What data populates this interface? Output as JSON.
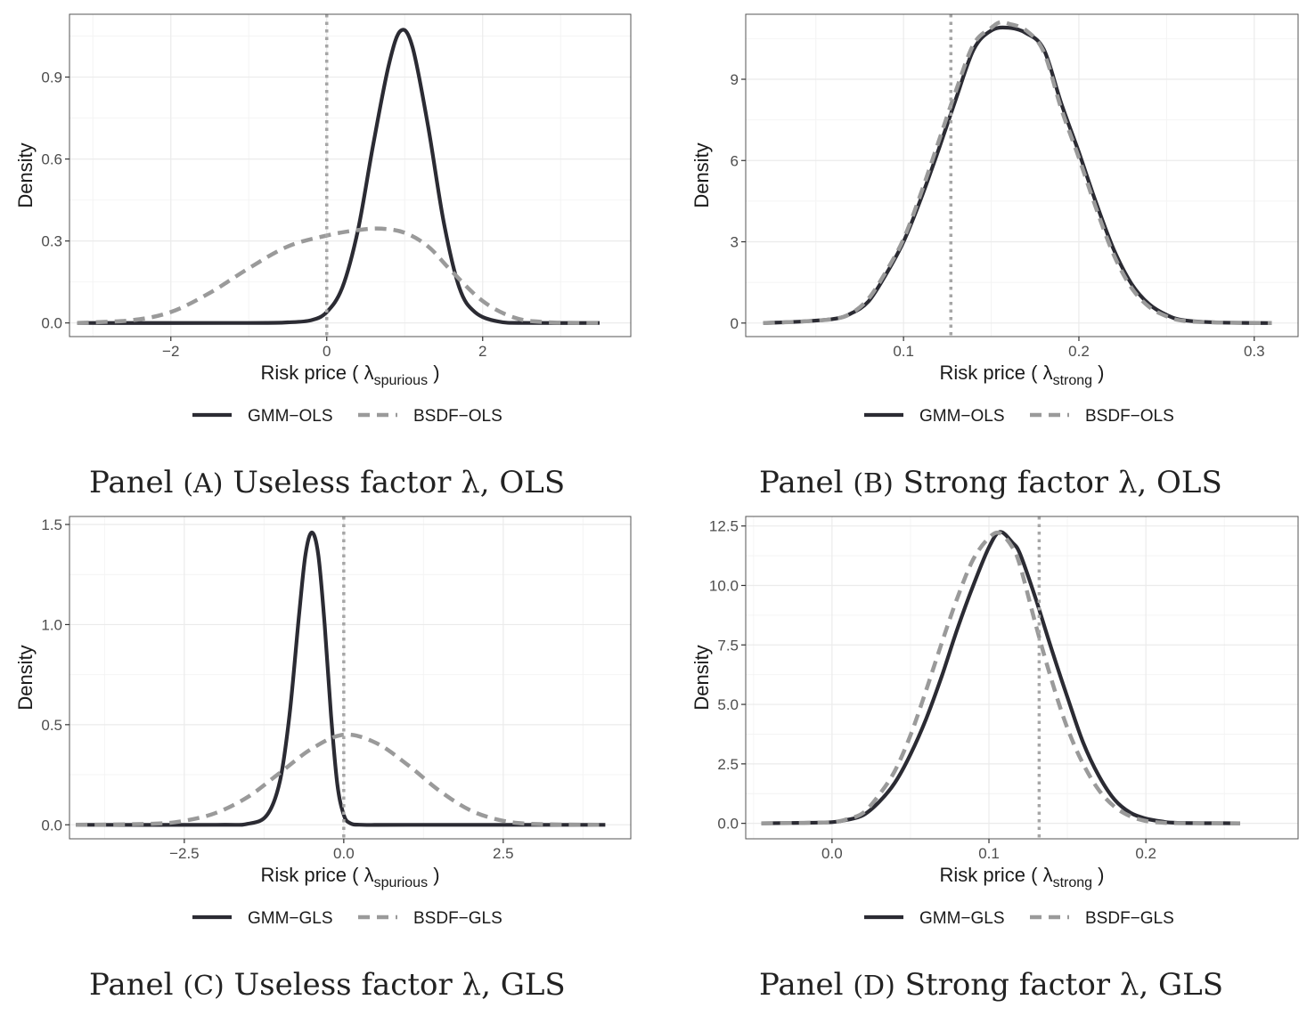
{
  "colors": {
    "solid": "#2b2b33",
    "dashed": "#9a9a9a",
    "vline": "#a6a6a6",
    "grid": "#ebebeb",
    "border": "#555555"
  },
  "panels": [
    {
      "id": "A",
      "caption": {
        "prefix": "Panel",
        "paren": "(A)",
        "text": "Useless factor λ, OLS"
      },
      "xlabel_main": "Risk price ( λ",
      "xlabel_sub": "spurious",
      "xlabel_end": " )",
      "ylabel": "Density",
      "legend": [
        "GMM−OLS",
        "BSDF−OLS"
      ],
      "xticks": [
        {
          "v": -2,
          "t": "−2"
        },
        {
          "v": 0,
          "t": "0"
        },
        {
          "v": 2,
          "t": "2"
        }
      ],
      "yticks": [
        {
          "v": 0,
          "t": "0.0"
        },
        {
          "v": 0.3,
          "t": "0.3"
        },
        {
          "v": 0.6,
          "t": "0.6"
        },
        {
          "v": 0.9,
          "t": "0.9"
        }
      ]
    },
    {
      "id": "B",
      "caption": {
        "prefix": "Panel",
        "paren": "(B)",
        "text": "Strong factor λ, OLS"
      },
      "xlabel_main": "Risk price ( λ",
      "xlabel_sub": "strong",
      "xlabel_end": " )",
      "ylabel": "Density",
      "legend": [
        "GMM−OLS",
        "BSDF−OLS"
      ],
      "xticks": [
        {
          "v": 0.1,
          "t": "0.1"
        },
        {
          "v": 0.2,
          "t": "0.2"
        },
        {
          "v": 0.3,
          "t": "0.3"
        }
      ],
      "yticks": [
        {
          "v": 0,
          "t": "0"
        },
        {
          "v": 3,
          "t": "3"
        },
        {
          "v": 6,
          "t": "6"
        },
        {
          "v": 9,
          "t": "9"
        }
      ]
    },
    {
      "id": "C",
      "caption": {
        "prefix": "Panel",
        "paren": "(C)",
        "text": "Useless factor λ, GLS"
      },
      "xlabel_main": "Risk price ( λ",
      "xlabel_sub": "spurious",
      "xlabel_end": " )",
      "ylabel": "Density",
      "legend": [
        "GMM−GLS",
        "BSDF−GLS"
      ],
      "xticks": [
        {
          "v": -2.5,
          "t": "−2.5"
        },
        {
          "v": 0,
          "t": "0.0"
        },
        {
          "v": 2.5,
          "t": "2.5"
        }
      ],
      "yticks": [
        {
          "v": 0,
          "t": "0.0"
        },
        {
          "v": 0.5,
          "t": "0.5"
        },
        {
          "v": 1.0,
          "t": "1.0"
        },
        {
          "v": 1.5,
          "t": "1.5"
        }
      ]
    },
    {
      "id": "D",
      "caption": {
        "prefix": "Panel",
        "paren": "(D)",
        "text": "Strong factor λ, GLS"
      },
      "xlabel_main": "Risk price ( λ",
      "xlabel_sub": "strong",
      "xlabel_end": " )",
      "ylabel": "Density",
      "legend": [
        "GMM−GLS",
        "BSDF−GLS"
      ],
      "xticks": [
        {
          "v": 0.0,
          "t": "0.0"
        },
        {
          "v": 0.1,
          "t": "0.1"
        },
        {
          "v": 0.2,
          "t": "0.2"
        }
      ],
      "yticks": [
        {
          "v": 0,
          "t": "0.0"
        },
        {
          "v": 2.5,
          "t": "2.5"
        },
        {
          "v": 5.0,
          "t": "5.0"
        },
        {
          "v": 7.5,
          "t": "7.5"
        },
        {
          "v": 10.0,
          "t": "10.0"
        },
        {
          "v": 12.5,
          "t": "12.5"
        }
      ]
    }
  ],
  "chart_data": [
    {
      "type": "line",
      "panel": "A",
      "xlim": [
        -3.3,
        3.9
      ],
      "ylim": [
        -0.05,
        1.13
      ],
      "vline": 0,
      "series": [
        {
          "name": "GMM−OLS",
          "style": "solid",
          "x": [
            -3.2,
            -1.0,
            -0.5,
            -0.2,
            0.0,
            0.2,
            0.4,
            0.6,
            0.8,
            0.95,
            1.1,
            1.3,
            1.5,
            1.7,
            1.9,
            2.2,
            2.6,
            3.5
          ],
          "y": [
            0.0,
            0.0,
            0.002,
            0.01,
            0.04,
            0.13,
            0.34,
            0.66,
            0.95,
            1.07,
            1.01,
            0.72,
            0.37,
            0.13,
            0.04,
            0.005,
            0.0,
            0.0
          ]
        },
        {
          "name": "BSDF−OLS",
          "style": "dashed",
          "x": [
            -3.2,
            -2.5,
            -2.0,
            -1.5,
            -1.0,
            -0.5,
            0.0,
            0.4,
            0.7,
            1.0,
            1.3,
            1.6,
            2.0,
            2.4,
            2.8,
            3.5
          ],
          "y": [
            0.0,
            0.01,
            0.04,
            0.11,
            0.2,
            0.28,
            0.32,
            0.34,
            0.345,
            0.33,
            0.28,
            0.19,
            0.08,
            0.02,
            0.003,
            0.0
          ]
        }
      ]
    },
    {
      "type": "line",
      "panel": "B",
      "xlim": [
        0.01,
        0.325
      ],
      "ylim": [
        -0.5,
        11.4
      ],
      "vline": 0.127,
      "series": [
        {
          "name": "GMM−OLS",
          "style": "solid",
          "x": [
            0.02,
            0.04,
            0.06,
            0.07,
            0.08,
            0.09,
            0.1,
            0.11,
            0.12,
            0.13,
            0.14,
            0.15,
            0.16,
            0.17,
            0.18,
            0.19,
            0.2,
            0.21,
            0.22,
            0.23,
            0.24,
            0.25,
            0.26,
            0.28,
            0.31
          ],
          "y": [
            0.0,
            0.05,
            0.15,
            0.35,
            0.8,
            1.8,
            3.0,
            4.6,
            6.4,
            8.3,
            10.1,
            10.8,
            10.9,
            10.7,
            10.1,
            8.1,
            6.3,
            4.4,
            2.7,
            1.45,
            0.7,
            0.3,
            0.1,
            0.02,
            0.0
          ]
        },
        {
          "name": "BSDF−OLS",
          "style": "dashed",
          "x": [
            0.02,
            0.04,
            0.06,
            0.07,
            0.08,
            0.09,
            0.1,
            0.11,
            0.12,
            0.13,
            0.14,
            0.15,
            0.155,
            0.16,
            0.17,
            0.18,
            0.19,
            0.2,
            0.21,
            0.22,
            0.23,
            0.24,
            0.25,
            0.26,
            0.28,
            0.31
          ],
          "y": [
            0.0,
            0.05,
            0.15,
            0.35,
            0.9,
            1.9,
            3.1,
            4.8,
            6.7,
            8.6,
            10.3,
            10.9,
            11.1,
            11.05,
            10.8,
            10.0,
            7.9,
            6.1,
            4.2,
            2.5,
            1.3,
            0.6,
            0.25,
            0.08,
            0.02,
            0.0
          ]
        }
      ]
    },
    {
      "type": "line",
      "panel": "C",
      "xlim": [
        -4.3,
        4.5
      ],
      "ylim": [
        -0.07,
        1.54
      ],
      "vline": 0,
      "series": [
        {
          "name": "GMM−GLS",
          "style": "solid",
          "x": [
            -4.2,
            -2.0,
            -1.5,
            -1.2,
            -1.0,
            -0.85,
            -0.7,
            -0.6,
            -0.5,
            -0.4,
            -0.3,
            -0.2,
            -0.1,
            0.0,
            0.1,
            0.3,
            1.0,
            4.1
          ],
          "y": [
            0.0,
            0.0,
            0.005,
            0.05,
            0.22,
            0.55,
            1.05,
            1.35,
            1.46,
            1.35,
            1.0,
            0.55,
            0.2,
            0.05,
            0.008,
            0.0,
            0.0,
            0.0
          ]
        },
        {
          "name": "BSDF−GLS",
          "style": "dashed",
          "x": [
            -4.2,
            -3.0,
            -2.5,
            -2.0,
            -1.5,
            -1.0,
            -0.5,
            0.0,
            0.5,
            1.0,
            1.5,
            2.0,
            2.5,
            3.0,
            4.1
          ],
          "y": [
            0.0,
            0.005,
            0.02,
            0.06,
            0.14,
            0.26,
            0.38,
            0.45,
            0.41,
            0.3,
            0.17,
            0.07,
            0.02,
            0.004,
            0.0
          ]
        }
      ]
    },
    {
      "type": "line",
      "panel": "D",
      "xlim": [
        -0.055,
        0.297
      ],
      "ylim": [
        -0.65,
        12.9
      ],
      "vline": 0.132,
      "series": [
        {
          "name": "GMM−GLS",
          "style": "solid",
          "x": [
            -0.045,
            -0.02,
            0.0,
            0.01,
            0.02,
            0.03,
            0.04,
            0.05,
            0.06,
            0.07,
            0.08,
            0.09,
            0.1,
            0.107,
            0.115,
            0.12,
            0.13,
            0.14,
            0.15,
            0.16,
            0.17,
            0.18,
            0.19,
            0.2,
            0.21,
            0.22,
            0.26
          ],
          "y": [
            0.0,
            0.02,
            0.05,
            0.15,
            0.35,
            0.9,
            1.7,
            2.9,
            4.4,
            6.2,
            8.2,
            10.0,
            11.6,
            12.25,
            11.8,
            11.3,
            9.4,
            7.3,
            5.3,
            3.4,
            2.0,
            1.0,
            0.45,
            0.2,
            0.08,
            0.02,
            0.0
          ]
        },
        {
          "name": "BSDF−GLS",
          "style": "dashed",
          "x": [
            -0.045,
            -0.02,
            0.0,
            0.01,
            0.02,
            0.03,
            0.04,
            0.05,
            0.06,
            0.07,
            0.08,
            0.09,
            0.1,
            0.107,
            0.115,
            0.12,
            0.13,
            0.14,
            0.15,
            0.16,
            0.17,
            0.18,
            0.19,
            0.2,
            0.21,
            0.22,
            0.26
          ],
          "y": [
            0.0,
            0.02,
            0.05,
            0.18,
            0.45,
            1.2,
            2.2,
            3.7,
            5.6,
            7.6,
            9.5,
            11.1,
            12.0,
            12.2,
            11.6,
            10.8,
            8.3,
            6.0,
            4.0,
            2.5,
            1.4,
            0.7,
            0.3,
            0.1,
            0.03,
            0.01,
            0.0
          ]
        }
      ]
    }
  ]
}
